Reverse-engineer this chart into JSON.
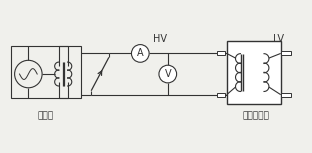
{
  "bg_color": "#f0f0ec",
  "line_color": "#333333",
  "title_hv": "HV",
  "title_lv": "LV",
  "label_regulator": "调压器",
  "label_transformer": "变压器试品",
  "fig_width": 3.12,
  "fig_height": 1.53,
  "dpi": 100
}
